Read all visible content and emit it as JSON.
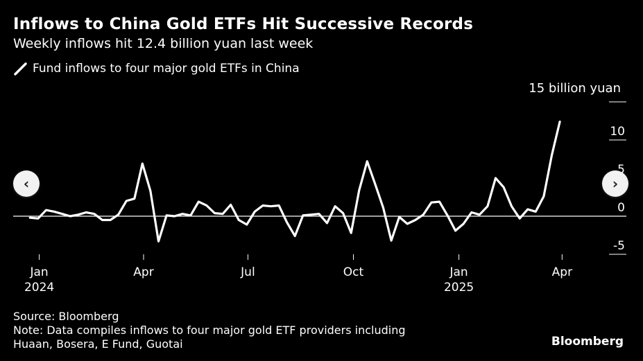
{
  "title": "Inflows to China Gold ETFs Hit Successive Records",
  "subtitle": "Weekly inflows hit 12.4 billion yuan last week",
  "source": "Source: Bloomberg",
  "note_line1": "Note: Data compiles inflows to four major gold ETF providers including",
  "note_line2": "Huaan, Bosera, E Fund, Guotai",
  "brand": "Bloomberg",
  "nav": {
    "prev_icon": "‹",
    "next_icon": "›"
  },
  "chart_data": {
    "type": "line",
    "title": "Inflows to China Gold ETFs Hit Successive Records",
    "subtitle": "Weekly inflows hit 12.4 billion yuan last week",
    "unit_label": "15 billion yuan",
    "ylim": [
      -5,
      15
    ],
    "yticks": [
      -5,
      0,
      5,
      10,
      15
    ],
    "ytick_labels": [
      "-5",
      "0",
      "5",
      "10",
      ""
    ],
    "xlim": [
      "2023-12-25",
      "2025-04-28"
    ],
    "xticks": [
      {
        "date": "2024-01-01",
        "label": "Jan",
        "sublabel": "2024"
      },
      {
        "date": "2024-04-01",
        "label": "Apr",
        "sublabel": ""
      },
      {
        "date": "2024-07-01",
        "label": "Jul",
        "sublabel": ""
      },
      {
        "date": "2024-10-01",
        "label": "Oct",
        "sublabel": ""
      },
      {
        "date": "2025-01-01",
        "label": "Jan",
        "sublabel": "2025"
      },
      {
        "date": "2025-04-01",
        "label": "Apr",
        "sublabel": ""
      }
    ],
    "grid": false,
    "zero_line": true,
    "legend_placement": "top-left",
    "colors": {
      "series": "#ffffff",
      "background": "#000000",
      "axis": "#ffffff"
    },
    "series": [
      {
        "name": "Fund inflows to four major gold ETFs in China",
        "points": [
          [
            "2023-12-24",
            -0.2
          ],
          [
            "2023-12-31",
            -0.3
          ],
          [
            "2024-01-07",
            0.8
          ],
          [
            "2024-01-14",
            0.6
          ],
          [
            "2024-01-21",
            0.3
          ],
          [
            "2024-01-28",
            0.0
          ],
          [
            "2024-02-04",
            0.2
          ],
          [
            "2024-02-11",
            0.5
          ],
          [
            "2024-02-18",
            0.3
          ],
          [
            "2024-02-25",
            -0.5
          ],
          [
            "2024-03-03",
            -0.5
          ],
          [
            "2024-03-10",
            0.2
          ],
          [
            "2024-03-17",
            2.0
          ],
          [
            "2024-03-24",
            2.3
          ],
          [
            "2024-03-31",
            6.9
          ],
          [
            "2024-04-07",
            3.3
          ],
          [
            "2024-04-14",
            -3.3
          ],
          [
            "2024-04-21",
            0.1
          ],
          [
            "2024-04-28",
            0.0
          ],
          [
            "2024-05-05",
            0.3
          ],
          [
            "2024-05-12",
            0.1
          ],
          [
            "2024-05-19",
            1.9
          ],
          [
            "2024-05-26",
            1.4
          ],
          [
            "2024-06-02",
            0.4
          ],
          [
            "2024-06-09",
            0.3
          ],
          [
            "2024-06-16",
            1.5
          ],
          [
            "2024-06-23",
            -0.5
          ],
          [
            "2024-06-30",
            -1.1
          ],
          [
            "2024-07-07",
            0.6
          ],
          [
            "2024-07-14",
            1.4
          ],
          [
            "2024-07-21",
            1.3
          ],
          [
            "2024-07-28",
            1.4
          ],
          [
            "2024-08-04",
            -0.8
          ],
          [
            "2024-08-11",
            -2.6
          ],
          [
            "2024-08-18",
            0.1
          ],
          [
            "2024-08-25",
            0.2
          ],
          [
            "2024-09-01",
            0.3
          ],
          [
            "2024-09-08",
            -0.9
          ],
          [
            "2024-09-15",
            1.3
          ],
          [
            "2024-09-22",
            0.4
          ],
          [
            "2024-09-29",
            -2.2
          ],
          [
            "2024-10-06",
            3.4
          ],
          [
            "2024-10-13",
            7.2
          ],
          [
            "2024-10-20",
            4.2
          ],
          [
            "2024-10-27",
            1.1
          ],
          [
            "2024-11-03",
            -3.2
          ],
          [
            "2024-11-10",
            -0.1
          ],
          [
            "2024-11-17",
            -1.0
          ],
          [
            "2024-11-24",
            -0.5
          ],
          [
            "2024-12-01",
            0.2
          ],
          [
            "2024-12-08",
            1.8
          ],
          [
            "2024-12-15",
            1.9
          ],
          [
            "2024-12-22",
            0.1
          ],
          [
            "2024-12-29",
            -1.9
          ],
          [
            "2025-01-05",
            -1.0
          ],
          [
            "2025-01-12",
            0.5
          ],
          [
            "2025-01-19",
            0.2
          ],
          [
            "2025-01-26",
            1.3
          ],
          [
            "2025-02-02",
            5.0
          ],
          [
            "2025-02-09",
            3.8
          ],
          [
            "2025-02-16",
            1.3
          ],
          [
            "2025-02-23",
            -0.3
          ],
          [
            "2025-03-02",
            0.9
          ],
          [
            "2025-03-09",
            0.6
          ],
          [
            "2025-03-16",
            2.6
          ],
          [
            "2025-03-23",
            8.0
          ],
          [
            "2025-03-30",
            12.4
          ]
        ]
      }
    ]
  }
}
